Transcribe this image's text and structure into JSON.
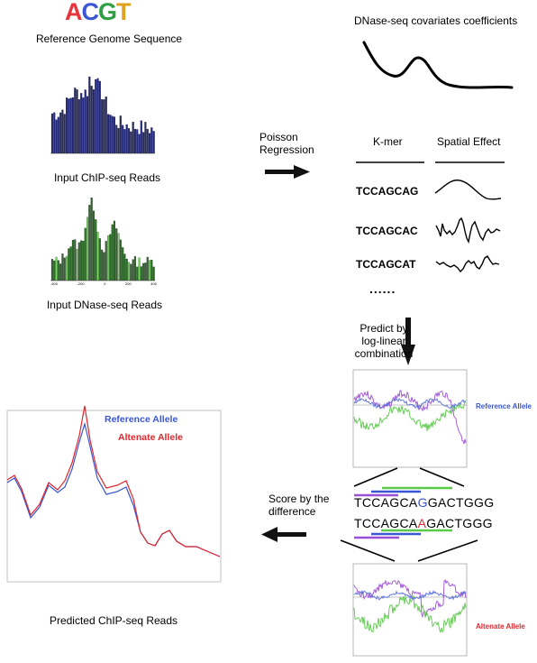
{
  "acgt": {
    "letters": [
      {
        "ch": "A",
        "color": "#e8333a"
      },
      {
        "ch": "C",
        "color": "#3a56d4"
      },
      {
        "ch": "G",
        "color": "#2ea043"
      },
      {
        "ch": "T",
        "color": "#e0a21e"
      }
    ]
  },
  "labels": {
    "reference_genome": "Reference Genome Sequence",
    "input_chip": "Input ChIP-seq Reads",
    "input_dnase": "Input DNase-seq Reads",
    "dnase_covariates": "DNase-seq covariates coefficients",
    "poisson": "Poisson\nRegression",
    "kmer_header": "K-mer",
    "spatial_header": "Spatial Effect",
    "ellipsis": "......",
    "predict": "Predict by\nlog-linear\ncombination",
    "reference_allele_small": "Reference Allele",
    "alternate_allele_small": "Altenate Allele",
    "score": "Score by the\ndifference",
    "predicted_chip": "Predicted ChIP-seq Reads"
  },
  "kmers": [
    "TCCAGCAG",
    "TCCAGCAC",
    "TCCAGCAT"
  ],
  "sequences": {
    "reference": {
      "prefix": "TCCAGCA",
      "allele": "G",
      "suffix": "GACTGGG",
      "allele_color": "#3a56d4"
    },
    "alternate": {
      "prefix": "TCCAGCA",
      "allele": "A",
      "suffix": "GACTGGG",
      "allele_color": "#e0262c"
    }
  },
  "predicted_legend": {
    "reference": {
      "label": "Reference Allele",
      "color": "#3a56d4"
    },
    "alternate": {
      "label": "Altenate Allele",
      "color": "#e0262c"
    }
  },
  "colors": {
    "chip_bars": "#23297a",
    "dnase_bars": "#2e6b2a",
    "dnase_bars_light": "#7cd36a",
    "purple": "#9b4fd6",
    "green": "#5bc94a",
    "blue": "#5a6fd6"
  },
  "dnase_ticks": [
    "-400",
    "-200",
    "0",
    "200",
    "400"
  ]
}
